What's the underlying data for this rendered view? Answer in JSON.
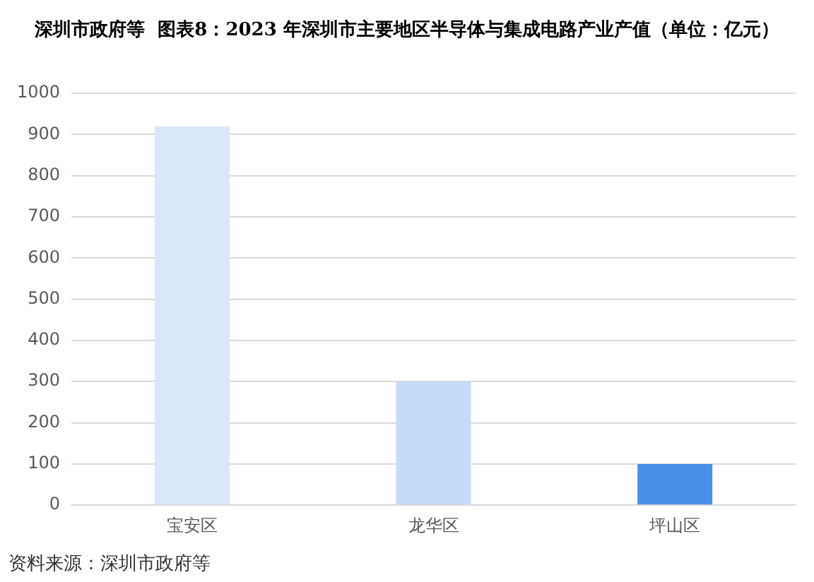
{
  "chart_data": {
    "type": "bar",
    "title": "深圳市政府等  图表8：2023 年深圳市主要地区半导体与集成电路产业产值（单位：亿元）",
    "annotations": [
      "资料来源：深圳市政府等"
    ],
    "categories": [
      "宝安区",
      "龙华区",
      "坪山区"
    ],
    "values": [
      920,
      300,
      100
    ],
    "colors": [
      "#dae7f9",
      "#c6dbf7",
      "#4a8fe8"
    ],
    "ylim": [
      0,
      1000
    ],
    "yticks": [
      0,
      100,
      200,
      300,
      400,
      500,
      600,
      700,
      800,
      900,
      1000
    ],
    "grid": "y"
  }
}
